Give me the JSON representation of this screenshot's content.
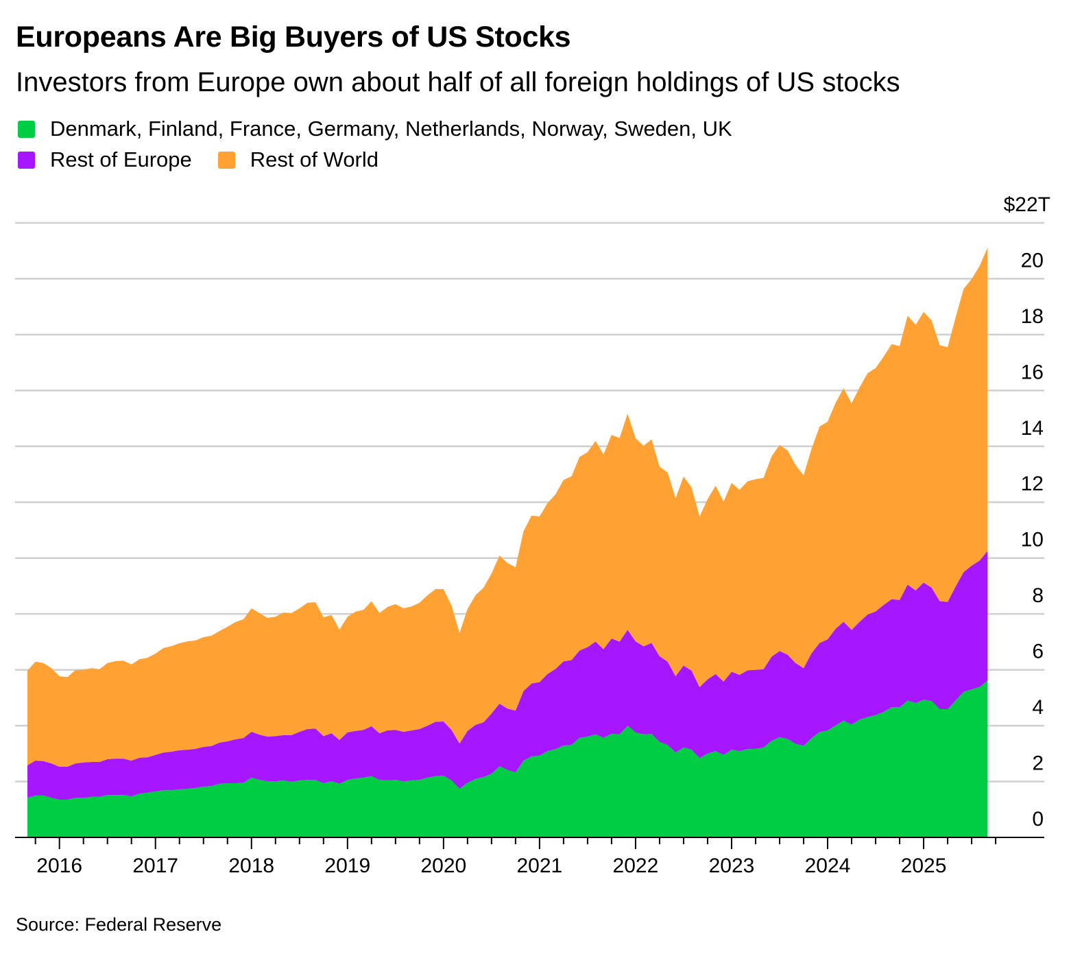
{
  "header": {
    "title": "Europeans Are Big Buyers of US Stocks",
    "subtitle": "Investors from Europe own about half of all foreign holdings of US stocks"
  },
  "legend": [
    {
      "label": "Denmark, Finland, France, Germany, Netherlands, Norway, Sweden, UK",
      "color": "#00cc44"
    },
    {
      "label": "Rest of Europe",
      "color": "#a616ff"
    },
    {
      "label": "Rest of World",
      "color": "#ffa133"
    }
  ],
  "footer": {
    "source": "Source: Federal Reserve"
  },
  "chart_data": {
    "type": "area",
    "stacked": true,
    "title": "Europeans Are Big Buyers of US Stocks",
    "subtitle": "Investors from Europe own about half of all foreign holdings of US stocks",
    "y_unit_label": "$22T",
    "ylim": [
      0,
      22
    ],
    "y_ticks": [
      "0",
      "2",
      "4",
      "6",
      "8",
      "10",
      "12",
      "14",
      "16",
      "18",
      "20",
      "$22T"
    ],
    "y_tick_values": [
      0,
      2,
      4,
      6,
      8,
      10,
      12,
      14,
      16,
      18,
      20,
      22
    ],
    "y_axis_position": "right",
    "x_ticks": [
      "2016",
      "2017",
      "2018",
      "2019",
      "2020",
      "2021",
      "2022",
      "2023",
      "2024",
      "2025"
    ],
    "grid": true,
    "legend_position": "top-left",
    "x": [
      "2015-09",
      "2015-10",
      "2015-11",
      "2015-12",
      "2016-01",
      "2016-02",
      "2016-03",
      "2016-04",
      "2016-05",
      "2016-06",
      "2016-07",
      "2016-08",
      "2016-09",
      "2016-10",
      "2016-11",
      "2016-12",
      "2017-01",
      "2017-02",
      "2017-03",
      "2017-04",
      "2017-05",
      "2017-06",
      "2017-07",
      "2017-08",
      "2017-09",
      "2017-10",
      "2017-11",
      "2017-12",
      "2018-01",
      "2018-02",
      "2018-03",
      "2018-04",
      "2018-05",
      "2018-06",
      "2018-07",
      "2018-08",
      "2018-09",
      "2018-10",
      "2018-11",
      "2018-12",
      "2019-01",
      "2019-02",
      "2019-03",
      "2019-04",
      "2019-05",
      "2019-06",
      "2019-07",
      "2019-08",
      "2019-09",
      "2019-10",
      "2019-11",
      "2019-12",
      "2020-01",
      "2020-02",
      "2020-03",
      "2020-04",
      "2020-05",
      "2020-06",
      "2020-07",
      "2020-08",
      "2020-09",
      "2020-10",
      "2020-11",
      "2020-12",
      "2021-01",
      "2021-02",
      "2021-03",
      "2021-04",
      "2021-05",
      "2021-06",
      "2021-07",
      "2021-08",
      "2021-09",
      "2021-10",
      "2021-11",
      "2021-12",
      "2022-01",
      "2022-02",
      "2022-03",
      "2022-04",
      "2022-05",
      "2022-06",
      "2022-07",
      "2022-08",
      "2022-09",
      "2022-10",
      "2022-11",
      "2022-12",
      "2023-01",
      "2023-02",
      "2023-03",
      "2023-04",
      "2023-05",
      "2023-06",
      "2023-07",
      "2023-08",
      "2023-09",
      "2023-10",
      "2023-11",
      "2023-12",
      "2024-01",
      "2024-02",
      "2024-03",
      "2024-04",
      "2024-05",
      "2024-06",
      "2024-07",
      "2024-08",
      "2024-09",
      "2024-10",
      "2024-11",
      "2024-12",
      "2025-01",
      "2025-02",
      "2025-03",
      "2025-04",
      "2025-05",
      "2025-06",
      "2025-07",
      "2025-08",
      "2025-09"
    ],
    "series": [
      {
        "name": "Denmark, Finland, France, Germany, Netherlands, Norway, Sweden, UK",
        "color": "#00cc44",
        "values": [
          1.42,
          1.5,
          1.5,
          1.42,
          1.35,
          1.35,
          1.42,
          1.42,
          1.45,
          1.45,
          1.52,
          1.52,
          1.52,
          1.47,
          1.57,
          1.6,
          1.65,
          1.69,
          1.69,
          1.72,
          1.74,
          1.77,
          1.82,
          1.84,
          1.92,
          1.94,
          1.94,
          1.96,
          2.14,
          2.06,
          2.01,
          2.01,
          2.04,
          1.99,
          2.04,
          2.06,
          2.06,
          1.94,
          2.01,
          1.92,
          2.06,
          2.11,
          2.14,
          2.19,
          2.06,
          2.04,
          2.06,
          2.01,
          2.04,
          2.06,
          2.14,
          2.19,
          2.21,
          2.04,
          1.74,
          1.96,
          2.09,
          2.16,
          2.28,
          2.55,
          2.41,
          2.33,
          2.75,
          2.9,
          2.93,
          3.09,
          3.16,
          3.29,
          3.31,
          3.57,
          3.61,
          3.69,
          3.57,
          3.71,
          3.69,
          4.0,
          3.76,
          3.69,
          3.7,
          3.42,
          3.31,
          3.04,
          3.22,
          3.14,
          2.84,
          3.0,
          3.09,
          2.95,
          3.14,
          3.09,
          3.16,
          3.17,
          3.22,
          3.46,
          3.59,
          3.52,
          3.35,
          3.28,
          3.56,
          3.77,
          3.83,
          4.01,
          4.18,
          4.04,
          4.22,
          4.31,
          4.38,
          4.49,
          4.66,
          4.66,
          4.9,
          4.81,
          4.93,
          4.88,
          4.59,
          4.59,
          4.9,
          5.21,
          5.3,
          5.39,
          5.62
        ]
      },
      {
        "name": "Rest of Europe",
        "color": "#a616ff",
        "values": [
          1.16,
          1.25,
          1.23,
          1.23,
          1.18,
          1.18,
          1.23,
          1.26,
          1.25,
          1.25,
          1.28,
          1.3,
          1.3,
          1.28,
          1.28,
          1.27,
          1.3,
          1.35,
          1.38,
          1.4,
          1.4,
          1.4,
          1.42,
          1.43,
          1.47,
          1.5,
          1.57,
          1.6,
          1.64,
          1.62,
          1.6,
          1.62,
          1.62,
          1.67,
          1.74,
          1.82,
          1.84,
          1.69,
          1.72,
          1.57,
          1.7,
          1.7,
          1.71,
          1.79,
          1.67,
          1.79,
          1.79,
          1.77,
          1.79,
          1.82,
          1.86,
          1.95,
          1.94,
          1.81,
          1.62,
          1.85,
          1.94,
          1.96,
          2.16,
          2.24,
          2.2,
          2.21,
          2.49,
          2.61,
          2.63,
          2.76,
          2.87,
          3.01,
          3.04,
          3.12,
          3.2,
          3.32,
          3.17,
          3.41,
          3.32,
          3.43,
          3.26,
          3.15,
          3.26,
          3.07,
          2.98,
          2.73,
          2.93,
          2.83,
          2.54,
          2.66,
          2.76,
          2.63,
          2.79,
          2.73,
          2.82,
          2.83,
          2.8,
          3.01,
          3.08,
          3.02,
          2.89,
          2.78,
          3.04,
          3.19,
          3.26,
          3.46,
          3.54,
          3.39,
          3.5,
          3.67,
          3.71,
          3.83,
          3.87,
          3.84,
          4.15,
          4.03,
          4.19,
          4.06,
          3.87,
          3.84,
          4.08,
          4.29,
          4.43,
          4.52,
          4.64
        ]
      },
      {
        "name": "Rest of World",
        "color": "#ffa133",
        "values": [
          3.39,
          3.54,
          3.51,
          3.41,
          3.24,
          3.21,
          3.34,
          3.32,
          3.36,
          3.32,
          3.44,
          3.49,
          3.51,
          3.44,
          3.53,
          3.56,
          3.63,
          3.74,
          3.78,
          3.83,
          3.88,
          3.88,
          3.93,
          3.95,
          4.0,
          4.1,
          4.2,
          4.25,
          4.42,
          4.35,
          4.25,
          4.27,
          4.39,
          4.37,
          4.42,
          4.52,
          4.52,
          4.25,
          4.23,
          3.95,
          4.14,
          4.27,
          4.3,
          4.47,
          4.3,
          4.42,
          4.5,
          4.42,
          4.44,
          4.52,
          4.67,
          4.75,
          4.74,
          4.45,
          3.96,
          4.37,
          4.64,
          4.82,
          5.01,
          5.3,
          5.21,
          5.13,
          5.72,
          6.01,
          5.93,
          6.12,
          6.25,
          6.5,
          6.58,
          6.93,
          6.98,
          7.18,
          6.97,
          7.29,
          7.29,
          7.74,
          7.27,
          7.18,
          7.29,
          6.78,
          6.78,
          6.37,
          6.77,
          6.56,
          6.11,
          6.45,
          6.74,
          6.44,
          6.76,
          6.62,
          6.77,
          6.82,
          6.85,
          7.17,
          7.38,
          7.31,
          7.09,
          6.9,
          7.32,
          7.75,
          7.79,
          8.09,
          8.36,
          8.11,
          8.39,
          8.64,
          8.71,
          8.89,
          9.13,
          9.09,
          9.63,
          9.51,
          9.69,
          9.57,
          9.16,
          9.12,
          9.64,
          10.14,
          10.26,
          10.55,
          10.86
        ]
      }
    ]
  }
}
